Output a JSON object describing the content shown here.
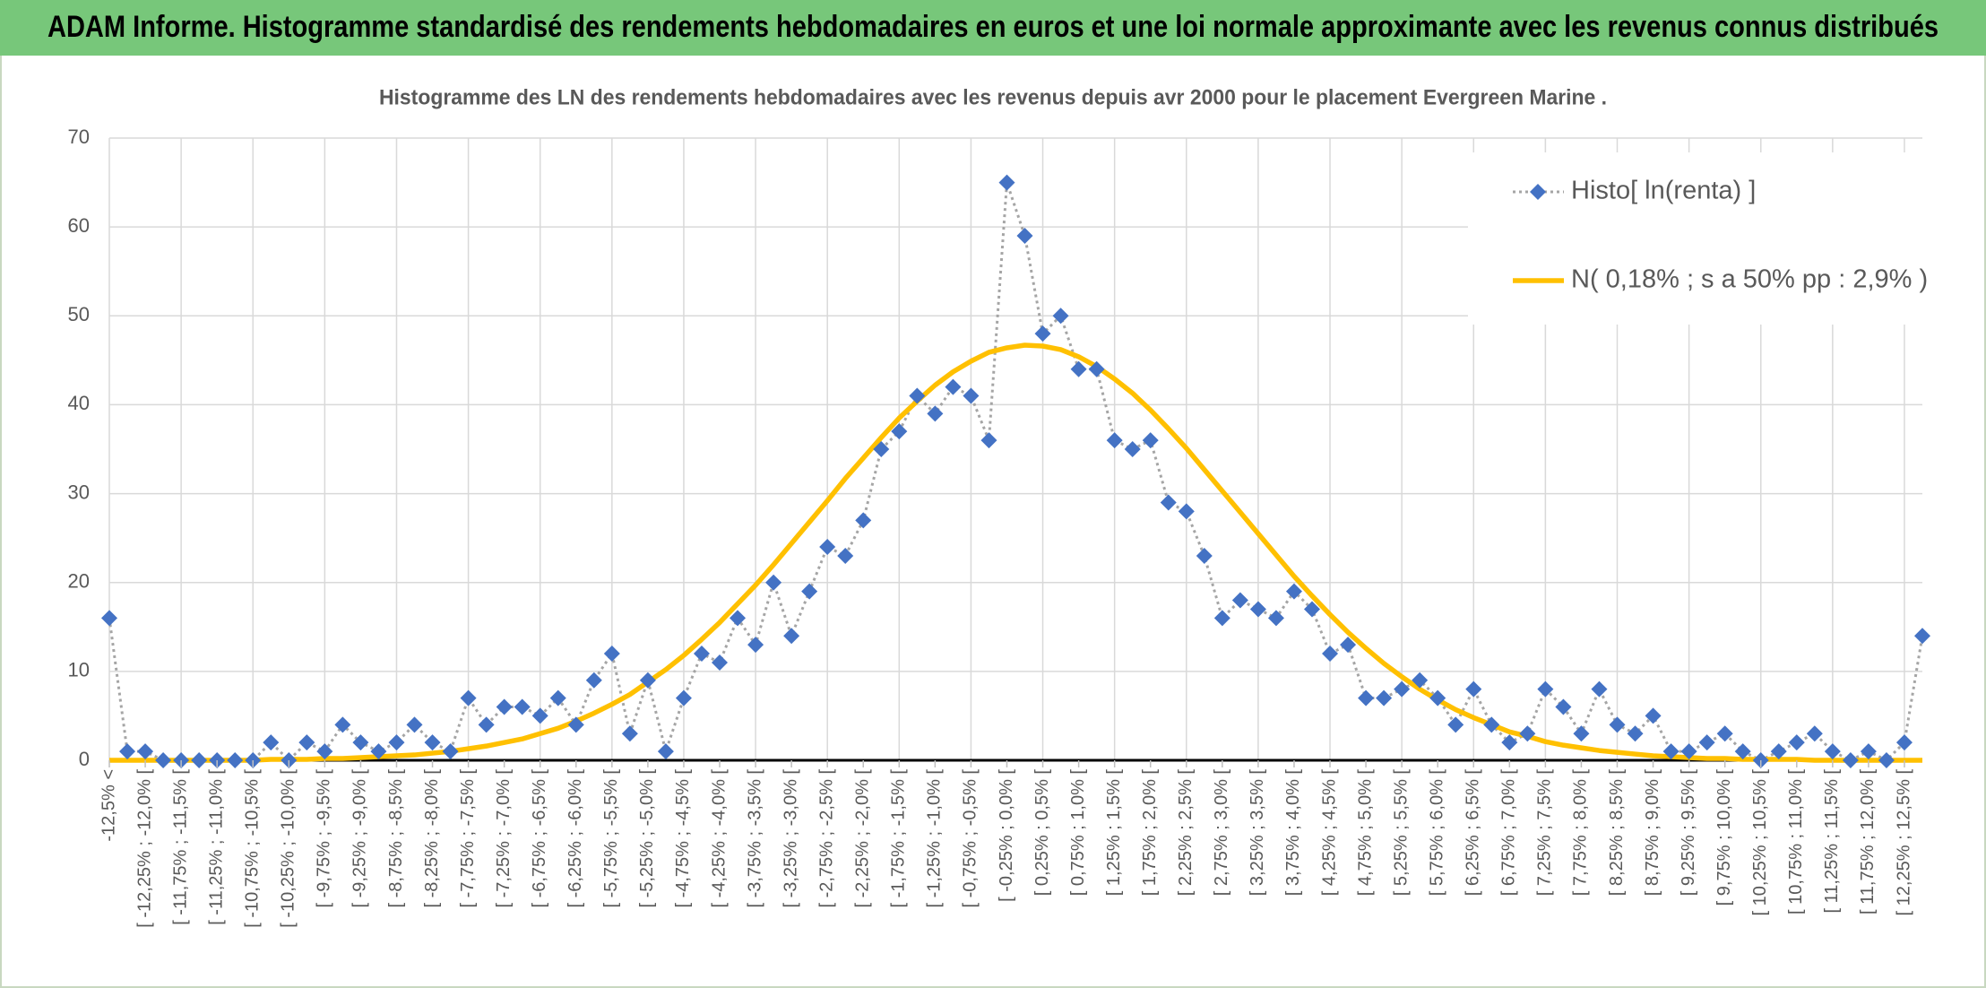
{
  "header": {
    "title": "ADAM Informe. Histogramme standardisé des rendements hebdomadaires en euros et une loi normale approximante avec les revenus connus distribués"
  },
  "chart_data": {
    "type": "line",
    "title": "Histogramme des LN des rendements hebdomadaires avec les revenus depuis avr 2000 pour le placement Evergreen Marine .",
    "categories": [
      "-12,5% <",
      null,
      "[ -12,25% ; -12,0% [",
      null,
      "[ -11,75% ; -11,5% [",
      null,
      "[ -11,25% ; -11,0% [",
      null,
      "[ -10,75% ; -10,5% [",
      null,
      "[ -10,25% ; -10,0% [",
      null,
      "[ -9,75% ; -9,5% [",
      null,
      "[ -9,25% ; -9,0% [",
      null,
      "[ -8,75% ; -8,5% [",
      null,
      "[ -8,25% ; -8,0% [",
      null,
      "[ -7,75% ; -7,5% [",
      null,
      "[ -7,25% ; -7,0% [",
      null,
      "[ -6,75% ; -6,5% [",
      null,
      "[ -6,25% ; -6,0% [",
      null,
      "[ -5,75% ; -5,5% [",
      null,
      "[ -5,25% ; -5,0% [",
      null,
      "[ -4,75% ; -4,5% [",
      null,
      "[ -4,25% ; -4,0% [",
      null,
      "[ -3,75% ; -3,5% [",
      null,
      "[ -3,25% ; -3,0% [",
      null,
      "[ -2,75% ; -2,5% [",
      null,
      "[ -2,25% ; -2,0% [",
      null,
      "[ -1,75% ; -1,5% [",
      null,
      "[ -1,25% ; -1,0% [",
      null,
      "[ -0,75% ; -0,5% [",
      null,
      "[ -0,25% ; 0,0% [",
      null,
      "[ 0,25% ; 0,5% [",
      null,
      "[ 0,75% ; 1,0% [",
      null,
      "[ 1,25% ; 1,5% [",
      null,
      "[ 1,75% ; 2,0% [",
      null,
      "[ 2,25% ; 2,5% [",
      null,
      "[ 2,75% ; 3,0% [",
      null,
      "[ 3,25% ; 3,5% [",
      null,
      "[ 3,75% ; 4,0% [",
      null,
      "[ 4,25% ; 4,5% [",
      null,
      "[ 4,75% ; 5,0% [",
      null,
      "[ 5,25% ; 5,5% [",
      null,
      "[ 5,75% ; 6,0% [",
      null,
      "[ 6,25% ; 6,5% [",
      null,
      "[ 6,75% ; 7,0% [",
      null,
      "[ 7,25% ; 7,5% [",
      null,
      "[ 7,75% ; 8,0% [",
      null,
      "[ 8,25% ; 8,5% [",
      null,
      "[ 8,75% ; 9,0% [",
      null,
      "[ 9,25% ; 9,5% [",
      null,
      "[ 9,75% ; 10,0% [",
      null,
      "[ 10,25% ; 10,5% [",
      null,
      "[ 10,75% ; 11,0% [",
      null,
      "[ 11,25% ; 11,5% [",
      null,
      "[ 11,75% ; 12,0% [",
      null,
      "[ 12,25% ; 12,5% [",
      null
    ],
    "series": [
      {
        "name": "Histo[ ln(renta) ]",
        "color": "#4472c4",
        "line_color": "#a5a5a5",
        "marker": "diamond",
        "line_style": "dotted",
        "values": [
          16,
          1,
          1,
          0,
          0,
          0,
          0,
          0,
          0,
          2,
          0,
          2,
          1,
          4,
          2,
          1,
          2,
          4,
          2,
          1,
          7,
          4,
          6,
          6,
          5,
          7,
          4,
          9,
          12,
          3,
          9,
          1,
          7,
          12,
          11,
          16,
          13,
          20,
          14,
          19,
          24,
          23,
          27,
          35,
          37,
          41,
          39,
          42,
          41,
          36,
          65,
          59,
          48,
          50,
          44,
          44,
          36,
          35,
          36,
          29,
          28,
          23,
          16,
          18,
          17,
          16,
          19,
          17,
          12,
          13,
          7,
          7,
          8,
          9,
          7,
          4,
          8,
          4,
          2,
          3,
          8,
          6,
          3,
          8,
          4,
          3,
          5,
          1,
          1,
          2,
          3,
          1,
          0,
          1,
          2,
          3,
          1,
          0,
          1,
          0,
          2,
          14
        ]
      },
      {
        "name": "N( 0,18% ; s a 50% pp : 2,9% )",
        "color": "#ffc000",
        "marker": "none",
        "line_style": "solid",
        "values": [
          0.0,
          0.0,
          0.0,
          0.0,
          0.0,
          0.0,
          0.0,
          0.0,
          0.0,
          0.1,
          0.1,
          0.1,
          0.2,
          0.2,
          0.3,
          0.4,
          0.5,
          0.6,
          0.8,
          1.0,
          1.3,
          1.6,
          2.0,
          2.4,
          3.0,
          3.6,
          4.4,
          5.3,
          6.3,
          7.4,
          8.8,
          10.2,
          11.8,
          13.6,
          15.5,
          17.6,
          19.7,
          22.0,
          24.4,
          26.8,
          29.2,
          31.7,
          34.0,
          36.3,
          38.5,
          40.4,
          42.2,
          43.7,
          44.9,
          45.9,
          46.4,
          46.7,
          46.6,
          46.2,
          45.4,
          44.3,
          42.9,
          41.3,
          39.4,
          37.3,
          35.1,
          32.7,
          30.3,
          27.9,
          25.5,
          23.1,
          20.7,
          18.5,
          16.4,
          14.4,
          12.6,
          10.9,
          9.4,
          8.0,
          6.8,
          5.7,
          4.8,
          4.0,
          3.2,
          2.7,
          2.1,
          1.7,
          1.4,
          1.1,
          0.9,
          0.7,
          0.5,
          0.4,
          0.3,
          0.2,
          0.2,
          0.1,
          0.1,
          0.1,
          0.1,
          0.0,
          0.0,
          0.0,
          0.0,
          0.0,
          0.0,
          0.0
        ]
      }
    ],
    "ylim": [
      0,
      70
    ],
    "yticks": [
      0,
      10,
      20,
      30,
      40,
      50,
      60,
      70
    ],
    "grid": true,
    "legend": "upper right"
  }
}
